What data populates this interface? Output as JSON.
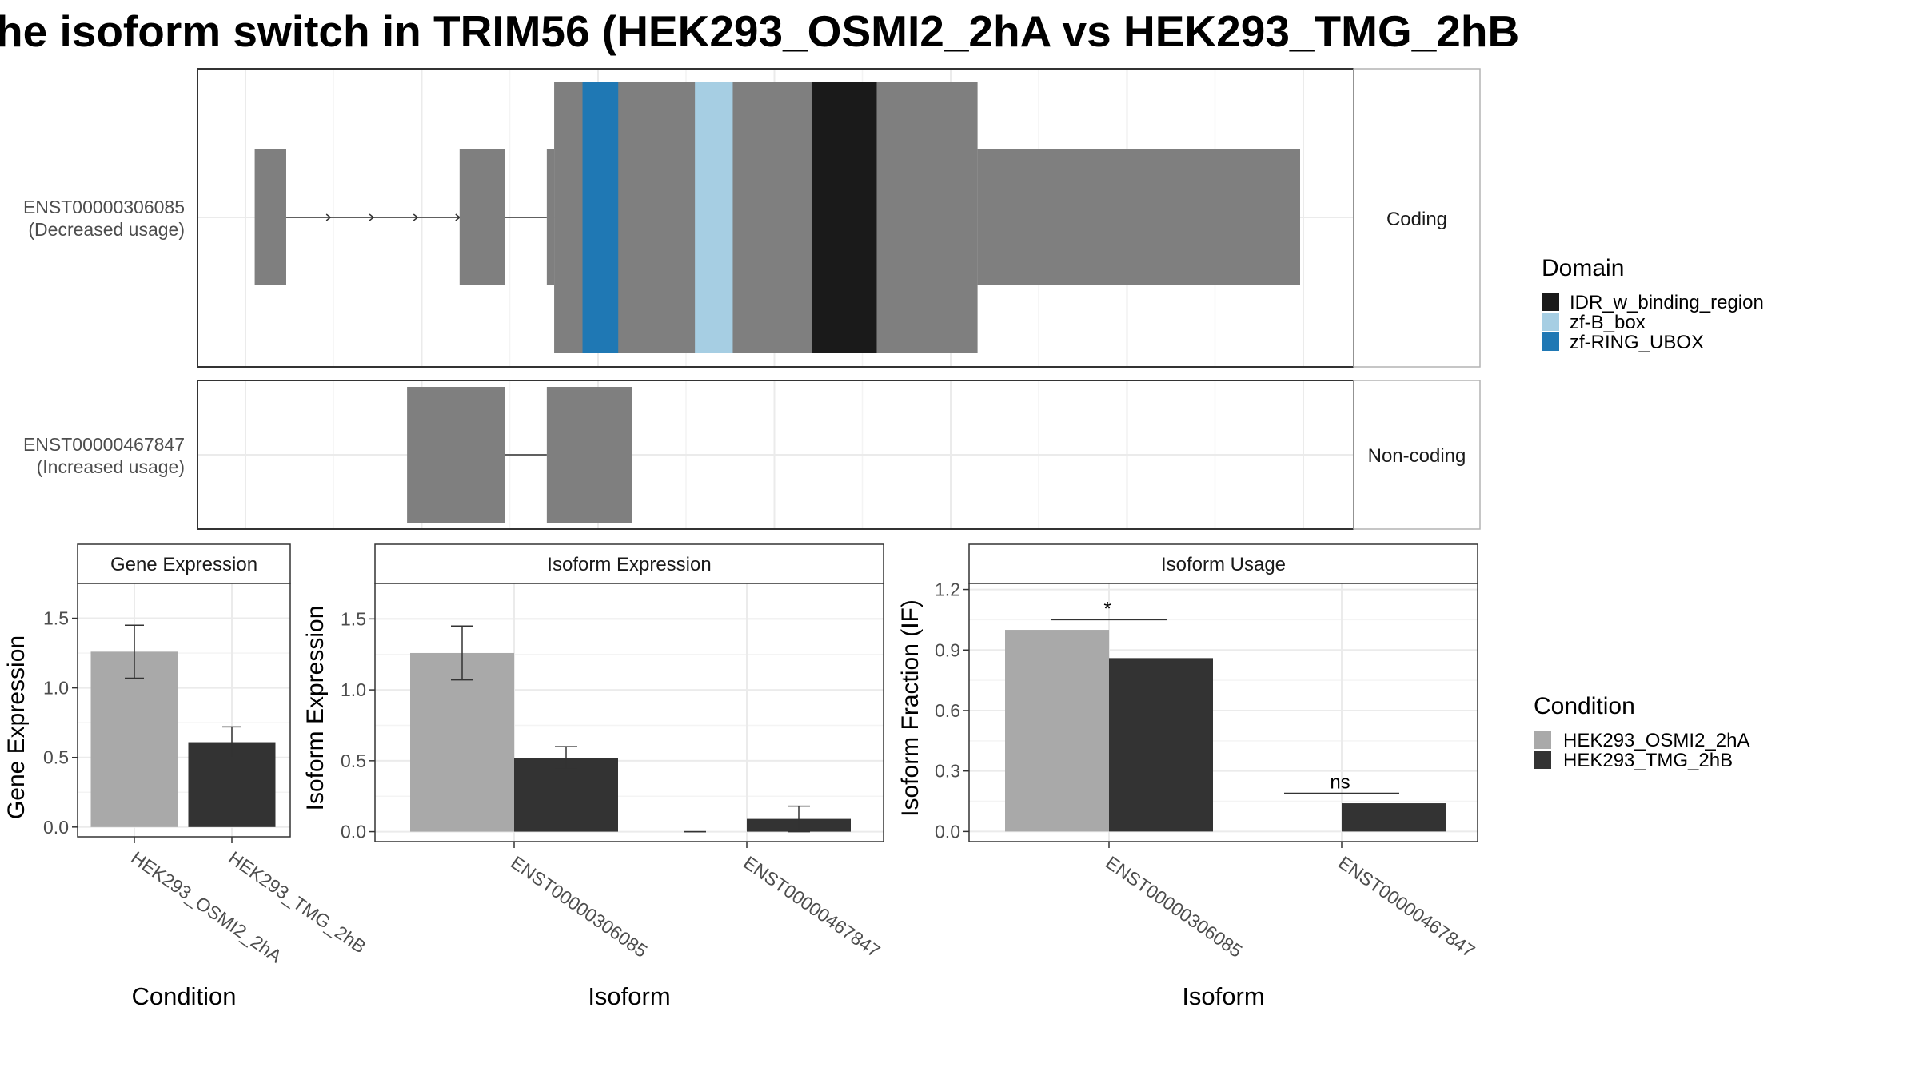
{
  "page": {
    "title": "he isoform switch in TRIM56 (HEK293_OSMI2_2hA vs HEK293_TMG_2hB"
  },
  "colors": {
    "exon": "#7f7f7f",
    "cond_a": "#a9a9a9",
    "cond_b": "#333333",
    "IDR_w_binding_region": "#1a1a1a",
    "zf-B_box": "#a6cee3",
    "zf-RING_UBOX": "#1f78b4",
    "grid": "#ebebeb",
    "strip_bg": "#ffffff"
  },
  "chart_data": [
    {
      "type": "gene_structure",
      "x_range": [
        0,
        1000
      ],
      "transcripts": [
        {
          "id": "ENST00000306085",
          "usage": "(Decreased usage)",
          "facet": "Coding",
          "exons": [
            {
              "start": 5,
              "end": 35,
              "kind": "utr"
            },
            {
              "start": 200,
              "end": 243,
              "kind": "utr"
            },
            {
              "start": 283,
              "end": 290,
              "kind": "utr"
            },
            {
              "start": 290,
              "end": 693,
              "kind": "cds"
            },
            {
              "start": 693,
              "end": 1000,
              "kind": "utr"
            }
          ],
          "introns": [
            {
              "start": 35,
              "end": 200,
              "arrows": [
                77,
                118,
                160,
                200
              ]
            },
            {
              "start": 243,
              "end": 283,
              "arrows": []
            }
          ],
          "domains": [
            {
              "name": "zf-RING_UBOX",
              "start": 317,
              "end": 351
            },
            {
              "name": "zf-B_box",
              "start": 424,
              "end": 460
            },
            {
              "name": "IDR_w_binding_region",
              "start": 535,
              "end": 597
            }
          ]
        },
        {
          "id": "ENST00000467847",
          "usage": "(Increased usage)",
          "facet": "Non-coding",
          "exons": [
            {
              "start": 150,
              "end": 243,
              "kind": "cds"
            },
            {
              "start": 283,
              "end": 364,
              "kind": "cds"
            }
          ],
          "introns": [
            {
              "start": 243,
              "end": 283,
              "arrows": []
            }
          ],
          "domains": []
        }
      ],
      "legend": {
        "title": "Domain",
        "entries": [
          "IDR_w_binding_region",
          "zf-B_box",
          "zf-RING_UBOX"
        ]
      }
    },
    {
      "type": "bar",
      "strip": "Gene Expression",
      "xlabel": "Condition",
      "ylabel": "Gene Expression",
      "categories": [
        "HEK293_OSMI2_2hA",
        "HEK293_TMG_2hB"
      ],
      "values": [
        1.26,
        0.61
      ],
      "errors": [
        [
          1.07,
          1.45
        ],
        [
          0.5,
          0.72
        ]
      ],
      "ylim": [
        -0.07,
        1.75
      ],
      "yticks": [
        "0.0",
        "0.5",
        "1.0",
        "1.5"
      ]
    },
    {
      "type": "bar",
      "strip": "Isoform Expression",
      "xlabel": "Isoform",
      "ylabel": "Isoform Expression",
      "categories": [
        "ENST00000306085",
        "ENST00000467847"
      ],
      "series": [
        {
          "name": "HEK293_OSMI2_2hA",
          "values": [
            1.26,
            0.0
          ],
          "errors": [
            [
              1.07,
              1.45
            ],
            [
              0.0,
              0.0
            ]
          ]
        },
        {
          "name": "HEK293_TMG_2hB",
          "values": [
            0.52,
            0.09
          ],
          "errors": [
            [
              0.44,
              0.6
            ],
            [
              0.0,
              0.18
            ]
          ]
        }
      ],
      "ylim": [
        -0.07,
        1.75
      ],
      "yticks": [
        "0.0",
        "0.5",
        "1.0",
        "1.5"
      ]
    },
    {
      "type": "bar",
      "strip": "Isoform Usage",
      "xlabel": "Isoform",
      "ylabel": "Isoform Fraction (IF)",
      "categories": [
        "ENST00000306085",
        "ENST00000467847"
      ],
      "series": [
        {
          "name": "HEK293_OSMI2_2hA",
          "values": [
            1.0,
            0.0
          ]
        },
        {
          "name": "HEK293_TMG_2hB",
          "values": [
            0.86,
            0.14
          ]
        }
      ],
      "significance": [
        "*",
        "ns"
      ],
      "ylim": [
        -0.05,
        1.23
      ],
      "yticks": [
        "0.0",
        "0.3",
        "0.6",
        "0.9",
        "1.2"
      ]
    }
  ],
  "condition_legend": {
    "title": "Condition",
    "entries": [
      "HEK293_OSMI2_2hA",
      "HEK293_TMG_2hB"
    ]
  }
}
